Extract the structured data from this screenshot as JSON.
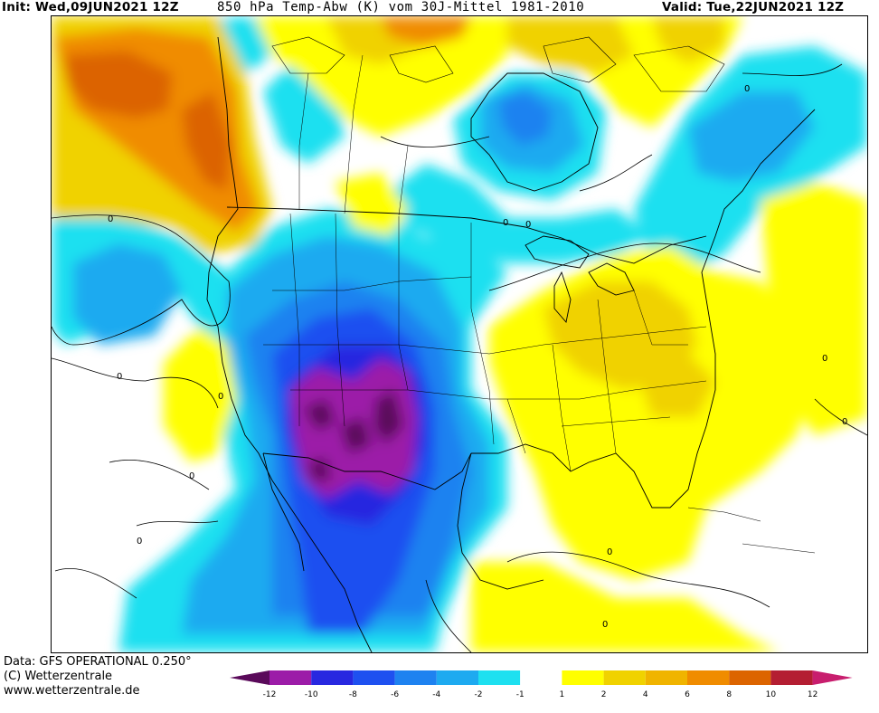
{
  "header": {
    "init": "Init: Wed,09JUN2021 12Z",
    "title": "850 hPa Temp-Abw (K) vom 30J-Mittel 1981-2010",
    "valid": "Valid: Tue,22JUN2021 12Z"
  },
  "map": {
    "region": "North America",
    "parameter": "850 hPa temperature anomaly (K)",
    "contour_label": "0",
    "contour_label_count": 12
  },
  "footer": {
    "data_line": "Data: GFS OPERATIONAL 0.250°",
    "copyright_line": "(C) Wetterzentrale",
    "url_line": "www.wetterzentrale.de"
  },
  "legend": {
    "levels": [
      "-12",
      "-10",
      "-8",
      "-6",
      "-4",
      "-2",
      "-1",
      "1",
      "2",
      "4",
      "6",
      "8",
      "10",
      "12"
    ],
    "colors": [
      "#9c1ca8",
      "#2828e0",
      "#1e50f0",
      "#1e82f0",
      "#1eaaf0",
      "#1ee0f0",
      "#ffffff",
      "#ffff00",
      "#f0d200",
      "#f0b400",
      "#f08c00",
      "#dc6400",
      "#b41e32"
    ],
    "low_arrow_color": "#5a0a5a",
    "high_arrow_color": "#c81e6e"
  }
}
